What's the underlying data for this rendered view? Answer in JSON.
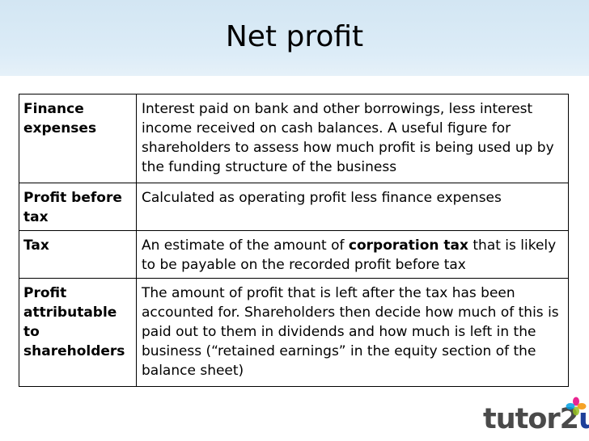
{
  "slide": {
    "title": "Net profit"
  },
  "rows": [
    {
      "term": "Finance expenses",
      "desc_before": "Interest paid on bank and other borrowings, less interest income received on cash balances.  A useful figure for shareholders to assess how much profit is being used up by the funding structure of the business",
      "desc_bold": "",
      "desc_after": ""
    },
    {
      "term": "Profit before tax",
      "desc_before": "Calculated as operating profit less finance expenses",
      "desc_bold": "",
      "desc_after": ""
    },
    {
      "term": "Tax",
      "desc_before": "An estimate of the amount of ",
      "desc_bold": "corporation tax",
      "desc_after": " that is likely to be payable on the recorded profit before tax"
    },
    {
      "term": "Profit attributable to shareholders",
      "desc_before": "The amount of profit that is left after the tax has been accounted for.  Shareholders then decide how much of this is paid out to them in dividends and how much is left in the business (“retained earnings” in the equity section of the balance sheet)",
      "desc_bold": "",
      "desc_after": ""
    }
  ],
  "logo": {
    "text_main": "tutor2",
    "text_accent": "u",
    "colors": {
      "main": "#4a4a4a",
      "accent": "#1f3f99",
      "petals": [
        "#e5007e",
        "#f39200",
        "#95c11f",
        "#00a0e3"
      ]
    }
  }
}
